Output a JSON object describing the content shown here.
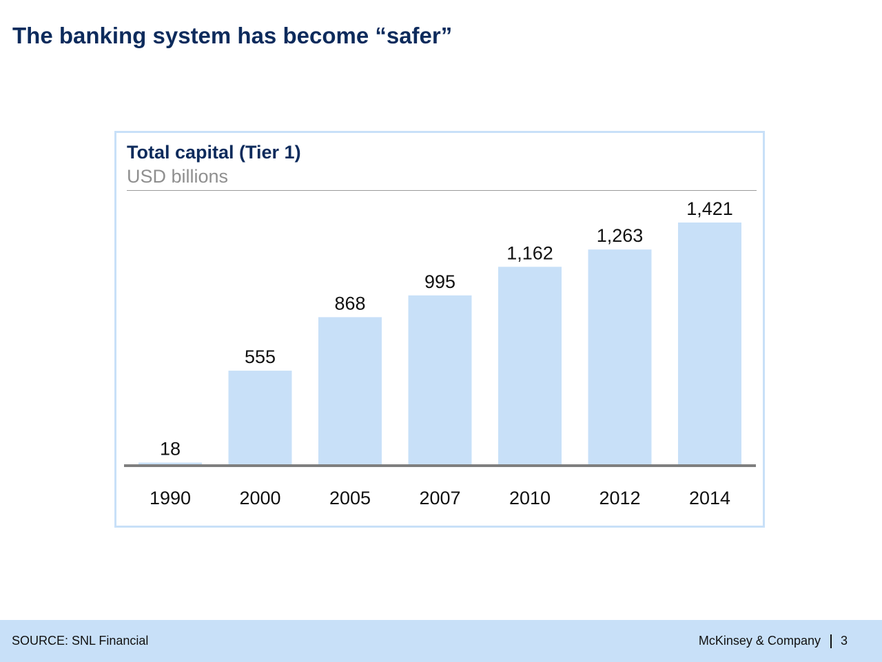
{
  "slide": {
    "title": "The banking system has become “safer”"
  },
  "chart_data": {
    "type": "bar",
    "title": "Total capital (Tier 1)",
    "unit": "USD billions",
    "categories": [
      "1990",
      "2000",
      "2005",
      "2007",
      "2010",
      "2012",
      "2014"
    ],
    "values": [
      18,
      555,
      868,
      995,
      1162,
      1263,
      1421
    ],
    "value_labels": [
      "18",
      "555",
      "868",
      "995",
      "1,162",
      "1,263",
      "1,421"
    ],
    "ylim": [
      0,
      1421
    ],
    "grid": false,
    "legend": "none",
    "bar_color": "#c8e0f8",
    "axis_color": "#7f7f7f"
  },
  "footer": {
    "source": "SOURCE: SNL Financial",
    "company": "McKinsey & Company",
    "page_number": "3"
  }
}
